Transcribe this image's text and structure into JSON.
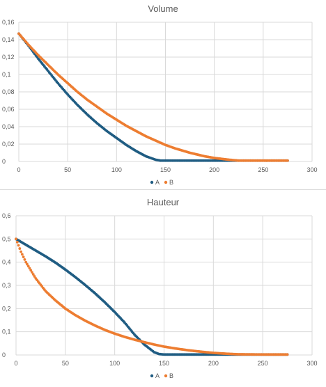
{
  "chart_data": [
    {
      "type": "scatter",
      "title": "Volume",
      "xlabel": "",
      "ylabel": "",
      "xlim": [
        0,
        300
      ],
      "ylim": [
        0,
        0.16
      ],
      "x_ticks": [
        "0",
        "50",
        "100",
        "150",
        "200",
        "250",
        "300"
      ],
      "y_ticks": [
        "0",
        "0,02",
        "0,04",
        "0,06",
        "0,08",
        "0,1",
        "0,12",
        "0,14",
        "0,16"
      ],
      "grid": true,
      "legend_position": "bottom",
      "series": [
        {
          "name": "A",
          "color": "#1f5c82",
          "points": [
            [
              0,
              0.147
            ],
            [
              10,
              0.133
            ],
            [
              20,
              0.118
            ],
            [
              30,
              0.104
            ],
            [
              40,
              0.09
            ],
            [
              50,
              0.077
            ],
            [
              60,
              0.065
            ],
            [
              70,
              0.054
            ],
            [
              80,
              0.044
            ],
            [
              90,
              0.035
            ],
            [
              100,
              0.027
            ],
            [
              110,
              0.019
            ],
            [
              120,
              0.012
            ],
            [
              130,
              0.006
            ],
            [
              140,
              0.002
            ],
            [
              145,
              0.001
            ],
            [
              150,
              0.001
            ],
            [
              175,
              0.001
            ],
            [
              200,
              0.001
            ],
            [
              225,
              0.001
            ],
            [
              250,
              0.001
            ],
            [
              275,
              0.001
            ]
          ]
        },
        {
          "name": "B",
          "color": "#ed7d31",
          "points": [
            [
              0,
              0.147
            ],
            [
              10,
              0.134
            ],
            [
              20,
              0.122
            ],
            [
              30,
              0.111
            ],
            [
              40,
              0.1
            ],
            [
              50,
              0.09
            ],
            [
              60,
              0.08
            ],
            [
              70,
              0.071
            ],
            [
              80,
              0.063
            ],
            [
              90,
              0.055
            ],
            [
              100,
              0.048
            ],
            [
              110,
              0.041
            ],
            [
              120,
              0.035
            ],
            [
              130,
              0.029
            ],
            [
              140,
              0.024
            ],
            [
              150,
              0.019
            ],
            [
              160,
              0.015
            ],
            [
              175,
              0.01
            ],
            [
              190,
              0.006
            ],
            [
              200,
              0.004
            ],
            [
              215,
              0.002
            ],
            [
              225,
              0.001
            ],
            [
              250,
              0.001
            ],
            [
              275,
              0.001
            ]
          ]
        }
      ]
    },
    {
      "type": "scatter",
      "title": "Hauteur",
      "xlabel": "",
      "ylabel": "",
      "xlim": [
        0,
        300
      ],
      "ylim": [
        0,
        0.6
      ],
      "x_ticks": [
        "0",
        "50",
        "100",
        "150",
        "200",
        "250",
        "300"
      ],
      "y_ticks": [
        "0",
        "0,1",
        "0,2",
        "0,3",
        "0,4",
        "0,5",
        "0,6"
      ],
      "grid": true,
      "legend_position": "bottom",
      "series": [
        {
          "name": "A",
          "color": "#1f5c82",
          "points": [
            [
              0,
              0.5
            ],
            [
              10,
              0.475
            ],
            [
              20,
              0.45
            ],
            [
              30,
              0.425
            ],
            [
              40,
              0.398
            ],
            [
              50,
              0.368
            ],
            [
              60,
              0.336
            ],
            [
              70,
              0.302
            ],
            [
              80,
              0.266
            ],
            [
              90,
              0.227
            ],
            [
              100,
              0.185
            ],
            [
              110,
              0.14
            ],
            [
              120,
              0.088
            ],
            [
              130,
              0.045
            ],
            [
              140,
              0.012
            ],
            [
              145,
              0.004
            ],
            [
              150,
              0.002
            ],
            [
              175,
              0.002
            ],
            [
              200,
              0.002
            ],
            [
              225,
              0.002
            ],
            [
              250,
              0.002
            ],
            [
              275,
              0.002
            ]
          ]
        },
        {
          "name": "B",
          "color": "#ed7d31",
          "points": [
            [
              0,
              0.5
            ],
            [
              5,
              0.445
            ],
            [
              10,
              0.4
            ],
            [
              20,
              0.33
            ],
            [
              30,
              0.275
            ],
            [
              40,
              0.235
            ],
            [
              50,
              0.2
            ],
            [
              60,
              0.172
            ],
            [
              70,
              0.148
            ],
            [
              80,
              0.127
            ],
            [
              90,
              0.108
            ],
            [
              100,
              0.092
            ],
            [
              110,
              0.078
            ],
            [
              120,
              0.066
            ],
            [
              130,
              0.055
            ],
            [
              140,
              0.045
            ],
            [
              150,
              0.036
            ],
            [
              160,
              0.029
            ],
            [
              175,
              0.02
            ],
            [
              190,
              0.013
            ],
            [
              200,
              0.009
            ],
            [
              215,
              0.005
            ],
            [
              225,
              0.003
            ],
            [
              250,
              0.002
            ],
            [
              275,
              0.002
            ]
          ]
        }
      ]
    }
  ]
}
